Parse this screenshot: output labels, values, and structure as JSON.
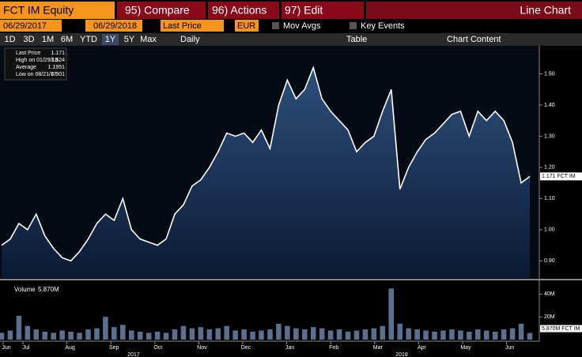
{
  "header": {
    "ticker": "FCT IM Equity",
    "compare": "95) Compare",
    "actions": "96) Actions",
    "edit": "97) Edit",
    "view": "Line Chart"
  },
  "controls": {
    "start_date": "06/29/2017",
    "end_date": "06/29/2018",
    "field": "Last Price",
    "currency": "EUR",
    "mov_avgs": "Mov Avgs",
    "key_events": "Key Events",
    "periods": [
      "1D",
      "3D",
      "1M",
      "6M",
      "YTD",
      "1Y",
      "5Y",
      "Max"
    ],
    "frequency": "Daily",
    "table": "Table",
    "chart_content": "Chart Content"
  },
  "chart_data": {
    "type": "line",
    "legend": [
      {
        "label": "Last Price",
        "value": 1.171
      },
      {
        "label": "High on 01/29/18",
        "value": 1.524
      },
      {
        "label": "Average",
        "value": 1.1951
      },
      {
        "label": "Low on 08/21/17",
        "value": 0.901
      }
    ],
    "series": [
      {
        "name": "FCT IM",
        "color": "#ffffff",
        "values": [
          0.95,
          0.97,
          1.02,
          1.0,
          1.05,
          0.98,
          0.94,
          0.91,
          0.9,
          0.93,
          0.97,
          1.02,
          1.05,
          1.03,
          1.1,
          1.0,
          0.97,
          0.96,
          0.95,
          0.97,
          1.05,
          1.08,
          1.14,
          1.16,
          1.2,
          1.25,
          1.31,
          1.3,
          1.31,
          1.28,
          1.32,
          1.26,
          1.4,
          1.48,
          1.42,
          1.45,
          1.52,
          1.42,
          1.38,
          1.35,
          1.32,
          1.25,
          1.28,
          1.3,
          1.38,
          1.45,
          1.13,
          1.2,
          1.25,
          1.29,
          1.31,
          1.34,
          1.37,
          1.38,
          1.3,
          1.38,
          1.35,
          1.38,
          1.35,
          1.28,
          1.15,
          1.171
        ]
      }
    ],
    "last_price_tag": "1.171 FCT IM",
    "ylim": [
      0.845,
      1.59
    ],
    "yticks": [
      {
        "value": 0.9,
        "label": "0.90"
      },
      {
        "value": 1.0,
        "label": "1.00"
      },
      {
        "value": 1.1,
        "label": "1.10"
      },
      {
        "value": 1.2,
        "label": "1.20"
      },
      {
        "value": 1.3,
        "label": "1.30"
      },
      {
        "value": 1.4,
        "label": "1.40"
      },
      {
        "value": 1.5,
        "label": "1.50"
      }
    ],
    "months": [
      "Jun",
      "Jul",
      "Aug",
      "Sep",
      "Oct",
      "Nov",
      "Dec",
      "Jan",
      "Feb",
      "Mar",
      "Apr",
      "May",
      "Jun"
    ],
    "years": [
      "2017",
      "2018"
    ],
    "volume": {
      "type": "bar",
      "name": "Volume",
      "last_label": "5.870M",
      "tag": "5.870M FCT IM",
      "color": "#5b6f8f",
      "values": [
        6000000,
        8000000,
        21000000,
        12000000,
        9000000,
        7000000,
        6000000,
        8000000,
        7000000,
        6000000,
        9000000,
        10000000,
        20000000,
        11000000,
        13000000,
        8000000,
        7000000,
        6000000,
        7000000,
        6000000,
        9000000,
        12000000,
        10000000,
        11000000,
        9000000,
        10000000,
        12000000,
        8000000,
        9000000,
        7000000,
        8000000,
        9000000,
        14000000,
        12000000,
        10000000,
        9000000,
        11000000,
        10000000,
        8000000,
        9000000,
        7000000,
        8000000,
        9000000,
        10000000,
        12000000,
        45000000,
        14000000,
        10000000,
        9000000,
        8000000,
        7000000,
        8000000,
        9000000,
        8000000,
        7000000,
        9000000,
        8000000,
        7000000,
        9000000,
        10000000,
        14000000,
        5870000
      ],
      "ylim": [
        0,
        50000000
      ],
      "yticks": [
        {
          "value": 20000000,
          "label": "20M"
        },
        {
          "value": 40000000,
          "label": "40M"
        }
      ]
    }
  }
}
